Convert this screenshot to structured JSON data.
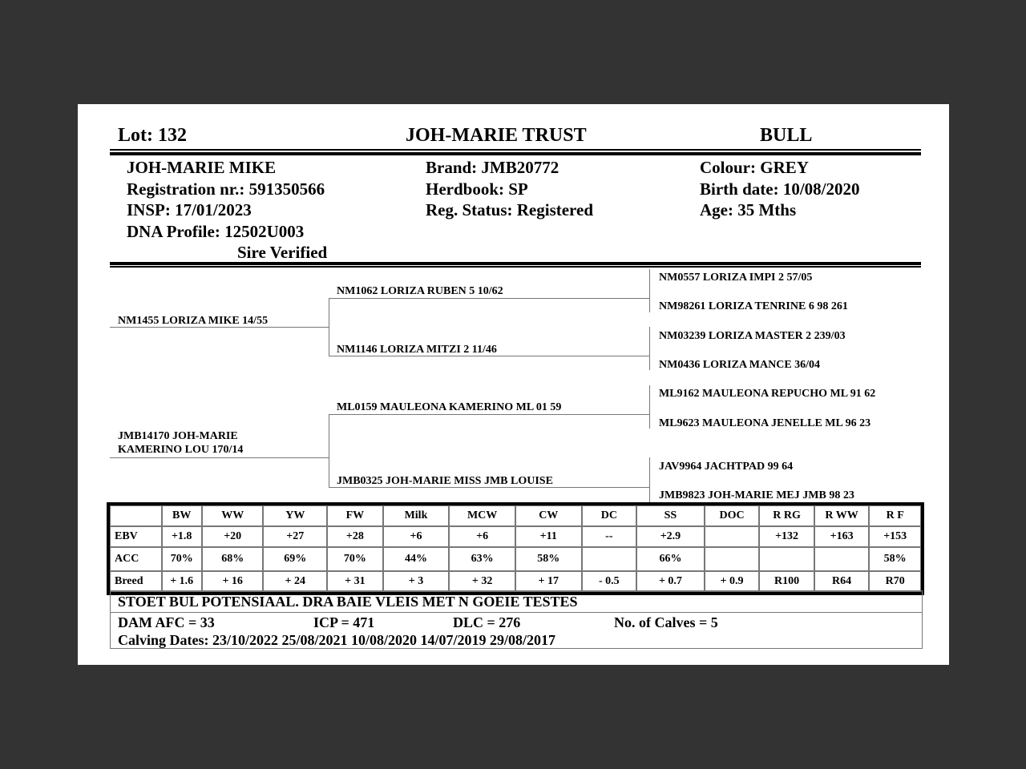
{
  "header": {
    "lot": "Lot:  132",
    "seller": "JOH-MARIE TRUST",
    "type": "BULL"
  },
  "animal": {
    "name": "JOH-MARIE MIKE",
    "registration": "Registration nr.: 591350566",
    "insp": "INSP: 17/01/2023",
    "dna": "DNA Profile:  12502U003",
    "sire_verified": "Sire Verified",
    "brand": "Brand:  JMB20772",
    "herdbook": "Herdbook: SP",
    "reg_status": "Reg. Status: Registered",
    "colour": "Colour:  GREY",
    "birth_date": "Birth date:  10/08/2020",
    "age": "Age: 35 Mths"
  },
  "pedigree": {
    "sire": "NM1455 LORIZA MIKE 14/55",
    "sire_sire": "NM1062 LORIZA RUBEN 5 10/62",
    "sire_dam": "NM1146 LORIZA MITZI 2 11/46",
    "ss_sire": "NM0557 LORIZA IMPI 2 57/05",
    "ss_dam": "NM98261 LORIZA TENRINE 6 98 261",
    "sd_sire": "NM03239 LORIZA MASTER 2 239/03",
    "sd_dam": "NM0436 LORIZA MANCE 36/04",
    "dam_line1": "JMB14170 JOH-MARIE",
    "dam_line2": "KAMERINO LOU 170/14",
    "dam_sire": "ML0159 MAULEONA KAMERINO ML 01 59",
    "dam_dam": "JMB0325 JOH-MARIE MISS JMB LOUISE",
    "ds_sire": "ML9162 MAULEONA REPUCHO ML 91 62",
    "ds_dam": "ML9623 MAULEONA JENELLE ML 96 23",
    "dd_sire": "JAV9964 JACHTPAD 99 64",
    "dd_dam": "JMB9823 JOH-MARIE MEJ JMB 98 23"
  },
  "ebv_table": {
    "columns": [
      "",
      "BW",
      "WW",
      "YW",
      "FW",
      "Milk",
      "MCW",
      "CW",
      "DC",
      "SS",
      "DOC",
      "R RG",
      "R WW",
      "R F"
    ],
    "rows": [
      [
        "EBV",
        "+1.8",
        "+20",
        "+27",
        "+28",
        "+6",
        "+6",
        "+11",
        "--",
        "+2.9",
        "",
        "+132",
        "+163",
        "+153"
      ],
      [
        "ACC",
        "70%",
        "68%",
        "69%",
        "70%",
        "44%",
        "63%",
        "58%",
        "",
        "66%",
        "",
        "",
        "",
        "58%"
      ],
      [
        "Breed",
        "+ 1.6",
        "+ 16",
        "+ 24",
        "+ 31",
        "+ 3",
        "+ 32",
        "+ 17",
        "- 0.5",
        "+ 0.7",
        "+ 0.9",
        "R100",
        "R64",
        "R70"
      ]
    ]
  },
  "comment": "STOET BUL POTENSIAAL. DRA BAIE VLEIS MET N GOEIE TESTES",
  "dam_stats": {
    "afc": "DAM AFC = 33",
    "icp": "ICP = 471",
    "dlc": "DLC = 276",
    "calves": "No. of Calves = 5",
    "calving_dates": "Calving Dates: 23/10/2022  25/08/2021  10/08/2020  14/07/2019  29/08/2017"
  }
}
